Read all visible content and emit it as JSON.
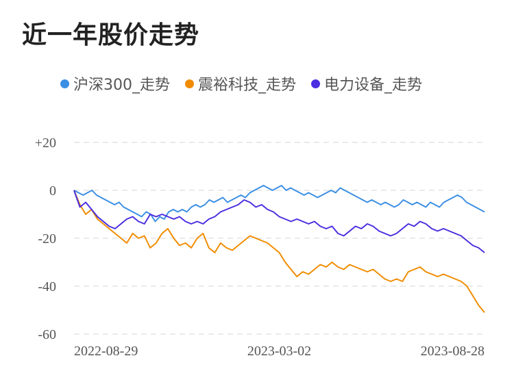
{
  "title": "近一年股价走势",
  "chart_data": {
    "type": "line",
    "ylim": [
      -60,
      20
    ],
    "yticks": [
      "+20",
      "0",
      "-20",
      "-40",
      "-60"
    ],
    "ytick_values": [
      20,
      0,
      -20,
      -40,
      -60
    ],
    "xticks": [
      "2022-08-29",
      "2023-03-02",
      "2023-08-28"
    ],
    "grid": true,
    "legend_position": "top-left",
    "series": [
      {
        "name": "沪深300_走势",
        "color": "#3b8fe4",
        "values": [
          0,
          -1,
          -2,
          -1,
          0,
          -2,
          -3,
          -4,
          -5,
          -6,
          -5,
          -7,
          -8,
          -9,
          -10,
          -11,
          -9,
          -10,
          -13,
          -11,
          -12,
          -9,
          -8,
          -9,
          -8,
          -9,
          -7,
          -6,
          -7,
          -6,
          -4,
          -5,
          -4,
          -3,
          -5,
          -4,
          -3,
          -2,
          -3,
          -1,
          0,
          1,
          2,
          1,
          0,
          1,
          2,
          0,
          1,
          0,
          -1,
          -2,
          -1,
          -2,
          -3,
          -2,
          -1,
          0,
          -1,
          1,
          0,
          -1,
          -2,
          -3,
          -4,
          -5,
          -4,
          -5,
          -6,
          -5,
          -6,
          -7,
          -6,
          -4,
          -5,
          -6,
          -5,
          -6,
          -7,
          -5,
          -6,
          -7,
          -5,
          -4,
          -3,
          -2,
          -3,
          -5,
          -6,
          -7,
          -8,
          -9
        ]
      },
      {
        "name": "震裕科技_走势",
        "color": "#f08c00",
        "values": [
          0,
          -6,
          -10,
          -8,
          -12,
          -14,
          -16,
          -18,
          -20,
          -22,
          -18,
          -20,
          -19,
          -24,
          -22,
          -18,
          -16,
          -20,
          -23,
          -22,
          -24,
          -20,
          -18,
          -24,
          -26,
          -22,
          -24,
          -25,
          -23,
          -21,
          -19,
          -20,
          -21,
          -22,
          -24,
          -26,
          -30,
          -33,
          -36,
          -34,
          -35,
          -33,
          -31,
          -32,
          -30,
          -32,
          -33,
          -31,
          -32,
          -33,
          -34,
          -33,
          -35,
          -37,
          -38,
          -37,
          -38,
          -34,
          -33,
          -32,
          -34,
          -35,
          -36,
          -35,
          -36,
          -37,
          -38,
          -40,
          -44,
          -48,
          -51
        ]
      },
      {
        "name": "电力设备_走势",
        "color": "#4a2ee0",
        "values": [
          0,
          -7,
          -5,
          -8,
          -11,
          -13,
          -15,
          -16,
          -14,
          -12,
          -11,
          -13,
          -14,
          -10,
          -11,
          -10,
          -11,
          -12,
          -11,
          -13,
          -14,
          -13,
          -14,
          -12,
          -11,
          -9,
          -8,
          -7,
          -6,
          -4,
          -5,
          -7,
          -6,
          -8,
          -9,
          -11,
          -12,
          -13,
          -12,
          -13,
          -14,
          -13,
          -15,
          -16,
          -15,
          -18,
          -19,
          -17,
          -15,
          -16,
          -14,
          -15,
          -17,
          -18,
          -19,
          -18,
          -16,
          -14,
          -15,
          -13,
          -14,
          -16,
          -17,
          -16,
          -17,
          -18,
          -19,
          -21,
          -23,
          -24,
          -26
        ]
      }
    ]
  }
}
